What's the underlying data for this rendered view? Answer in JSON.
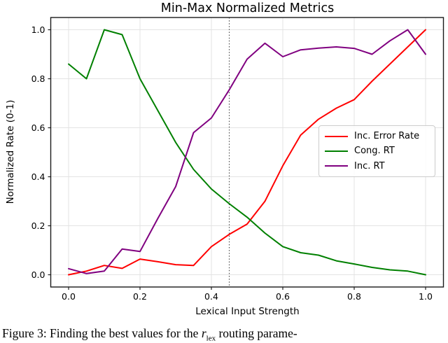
{
  "chart_data": {
    "type": "line",
    "title": "Min-Max Normalized Metrics",
    "xlabel": "Lexical Input Strength",
    "ylabel": "Normalized Rate (0-1)",
    "xlim": [
      -0.05,
      1.05
    ],
    "ylim": [
      -0.05,
      1.05
    ],
    "grid": true,
    "legend_position": "center right",
    "xticks": {
      "values": [
        0.0,
        0.2,
        0.4,
        0.6,
        0.8,
        1.0
      ],
      "labels": [
        "0.0",
        "0.2",
        "0.4",
        "0.6",
        "0.8",
        "1.0"
      ]
    },
    "yticks": {
      "values": [
        0.0,
        0.2,
        0.4,
        0.6,
        0.8,
        1.0
      ],
      "labels": [
        "0.0",
        "0.2",
        "0.4",
        "0.6",
        "0.8",
        "1.0"
      ]
    },
    "vline": {
      "x": 0.45,
      "style": "dotted",
      "color": "#444444"
    },
    "x": [
      0.0,
      0.05,
      0.1,
      0.15,
      0.2,
      0.25,
      0.3,
      0.35,
      0.4,
      0.45,
      0.5,
      0.55,
      0.6,
      0.65,
      0.7,
      0.75,
      0.8,
      0.85,
      0.9,
      0.95,
      1.0
    ],
    "series": [
      {
        "name": "Inc. Error Rate",
        "color": "#ff0000",
        "values": [
          0.0,
          0.015,
          0.038,
          0.026,
          0.064,
          0.053,
          0.041,
          0.038,
          0.115,
          0.165,
          0.207,
          0.3,
          0.445,
          0.57,
          0.635,
          0.68,
          0.715,
          0.79,
          0.86,
          0.93,
          1.0
        ]
      },
      {
        "name": "Cong. RT",
        "color": "#008000",
        "values": [
          0.86,
          0.8,
          1.0,
          0.98,
          0.8,
          0.67,
          0.54,
          0.43,
          0.35,
          0.29,
          0.235,
          0.17,
          0.115,
          0.09,
          0.08,
          0.057,
          0.044,
          0.03,
          0.02,
          0.015,
          0.0
        ]
      },
      {
        "name": "Inc. RT",
        "color": "#800080",
        "values": [
          0.025,
          0.005,
          0.015,
          0.105,
          0.095,
          0.23,
          0.36,
          0.58,
          0.64,
          0.755,
          0.88,
          0.945,
          0.89,
          0.918,
          0.925,
          0.93,
          0.924,
          0.9,
          0.955,
          1.0,
          0.9
        ]
      }
    ]
  },
  "caption": {
    "prefix": "Figure 3:  Finding the best values for the ",
    "var": "r",
    "subscript": "lex",
    "suffix": " routing parame-"
  },
  "colors": {
    "grid": "#e3e3e3",
    "spine": "#1a1a1a",
    "tick": "#222222"
  }
}
